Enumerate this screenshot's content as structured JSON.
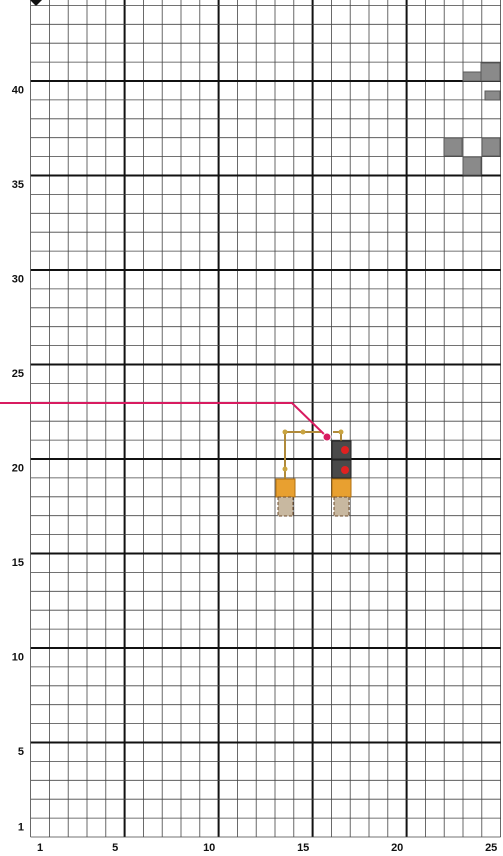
{
  "grid": {
    "x_labels": [
      1,
      5,
      10,
      15,
      20,
      25
    ],
    "y_labels": [
      1,
      5,
      10,
      15,
      20,
      25,
      30,
      35,
      40
    ]
  }
}
